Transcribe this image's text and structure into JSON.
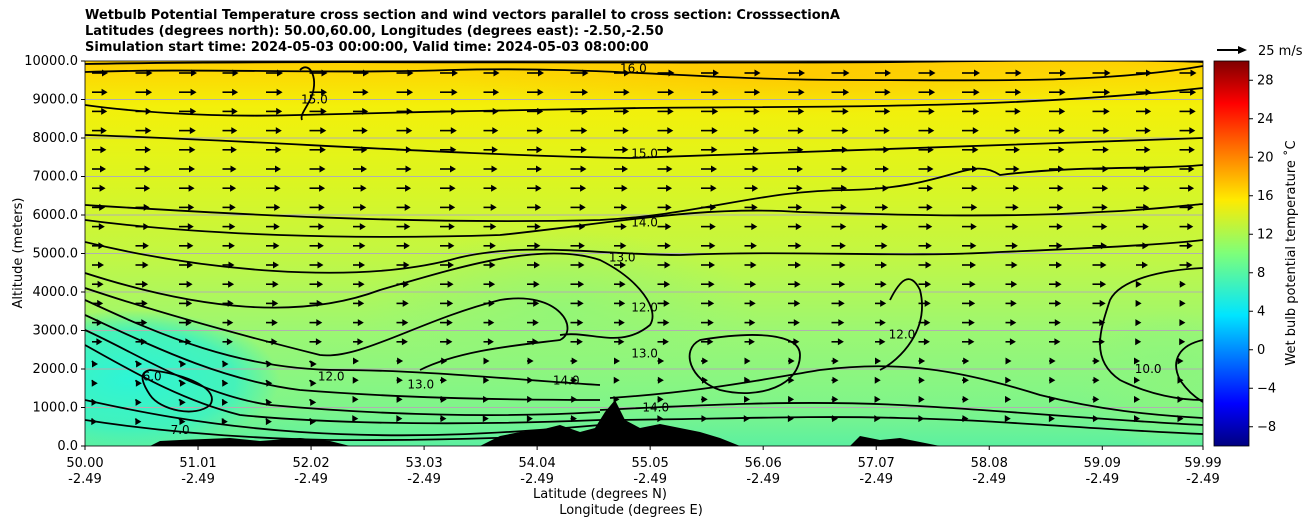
{
  "title_lines": [
    "Wetbulb Potential Temperature cross section and wind vectors parallel to cross section: CrosssectionA",
    "Latitudes (degrees north): 50.00,60.00, Longitudes (degrees east): -2.50,-2.50",
    "Simulation start time: 2024-05-03 00:00:00, Valid time: 2024-05-03 08:00:00"
  ],
  "chart_data": {
    "type": "heatmap",
    "ylabel": "Altitude (meters)",
    "xlabel_line1": "Latitude (degrees N)",
    "xlabel_line2": "Longitude (degrees E)",
    "ylim": [
      0,
      10000
    ],
    "xlim": [
      50.0,
      59.99
    ],
    "y_ticks": [
      0,
      1000,
      2000,
      3000,
      4000,
      5000,
      6000,
      7000,
      8000,
      9000,
      10000
    ],
    "y_tick_labels": [
      "0.0",
      "1000.0",
      "2000.0",
      "3000.0",
      "4000.0",
      "5000.0",
      "6000.0",
      "7000.0",
      "8000.0",
      "9000.0",
      "10000.0"
    ],
    "x_ticks": [
      {
        "lat": "50.00",
        "lon": "-2.49"
      },
      {
        "lat": "51.01",
        "lon": "-2.49"
      },
      {
        "lat": "52.02",
        "lon": "-2.49"
      },
      {
        "lat": "53.03",
        "lon": "-2.49"
      },
      {
        "lat": "54.04",
        "lon": "-2.49"
      },
      {
        "lat": "55.05",
        "lon": "-2.49"
      },
      {
        "lat": "56.06",
        "lon": "-2.49"
      },
      {
        "lat": "57.07",
        "lon": "-2.49"
      },
      {
        "lat": "58.08",
        "lon": "-2.49"
      },
      {
        "lat": "59.09",
        "lon": "-2.49"
      },
      {
        "lat": "59.99",
        "lon": "-2.49"
      }
    ],
    "grid": "horizontal lines at y ticks",
    "colorbar": {
      "label": "Wet bulb potential temperature ˚C",
      "range": [
        -10,
        30
      ],
      "ticks": [
        -8,
        -4,
        0,
        4,
        8,
        12,
        16,
        20,
        24,
        28
      ],
      "tick_labels": [
        "−8",
        "−4",
        "0",
        "4",
        "8",
        "12",
        "16",
        "20",
        "24",
        "28"
      ],
      "colormap": "jet"
    },
    "vector_key_label": "25 m/s",
    "contour_labels": [
      {
        "text": "16.0",
        "lat": 54.9,
        "alt": 9800
      },
      {
        "text": "15.0",
        "lat": 55.0,
        "alt": 7600
      },
      {
        "text": "14.0",
        "lat": 55.0,
        "alt": 5800
      },
      {
        "text": "13.0",
        "lat": 54.8,
        "alt": 4900
      },
      {
        "text": "12.0",
        "lat": 55.0,
        "alt": 3600
      },
      {
        "text": "13.0",
        "lat": 55.0,
        "alt": 2400
      },
      {
        "text": "14.0",
        "lat": 54.3,
        "alt": 1700
      },
      {
        "text": "14.0",
        "lat": 55.1,
        "alt": 1000
      },
      {
        "text": "12.0",
        "lat": 52.2,
        "alt": 1800
      },
      {
        "text": "13.0",
        "lat": 53.0,
        "alt": 1600
      },
      {
        "text": "6.0",
        "lat": 50.6,
        "alt": 1800
      },
      {
        "text": "7.0",
        "lat": 50.85,
        "alt": 420
      },
      {
        "text": "12.0",
        "lat": 57.3,
        "alt": 2900
      },
      {
        "text": "10.0",
        "lat": 59.5,
        "alt": 2000
      },
      {
        "text": "15.0",
        "lat": 52.05,
        "alt": 9000
      }
    ],
    "contour_levels": [
      6,
      7,
      8,
      9,
      10,
      11,
      12,
      13,
      14,
      15,
      16,
      17
    ]
  }
}
